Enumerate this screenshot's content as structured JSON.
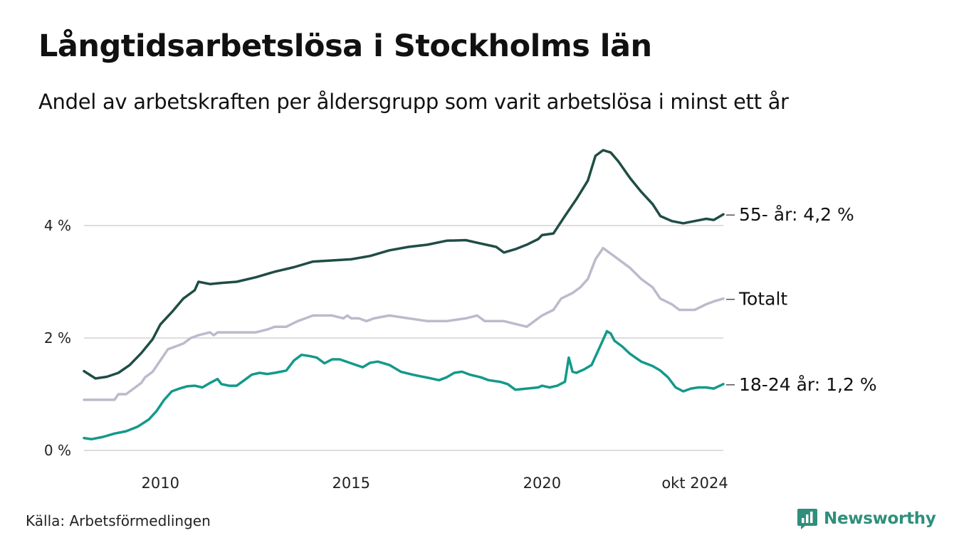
{
  "header": {
    "title": "Långtidsarbetslösa i Stockholms län",
    "subtitle": "Andel av arbetskraften per åldersgrupp som varit arbetslösa i minst ett år"
  },
  "footer": {
    "source": "Källa: Arbetsförmedlingen",
    "brand": "Newsworthy"
  },
  "colors": {
    "series_55": "#1f4d45",
    "series_total": "#bcbacb",
    "series_18_24": "#13998a",
    "grid": "#dddddd",
    "brand": "#2f8f7c"
  },
  "chart_data": {
    "type": "line",
    "title": "Långtidsarbetslösa i Stockholms län",
    "subtitle": "Andel av arbetskraften per åldersgrupp som varit arbetslösa i minst ett år",
    "xlabel": "",
    "ylabel": "",
    "xlim": [
      2008.0,
      2024.75
    ],
    "ylim": [
      0,
      5.5
    ],
    "yticks": [
      0,
      2,
      4
    ],
    "ytick_labels": [
      "0 %",
      "2 %",
      "4 %"
    ],
    "xticks": [
      2010,
      2015,
      2020,
      2024.75
    ],
    "xtick_labels": [
      "2010",
      "2015",
      "2020",
      "okt 2024"
    ],
    "grid": true,
    "series": [
      {
        "name": "55- år",
        "end_label": "55- år: 4,2 %",
        "x": [
          2008.0,
          2008.3,
          2008.6,
          2008.9,
          2009.2,
          2009.5,
          2009.8,
          2010.0,
          2010.3,
          2010.6,
          2010.9,
          2011.0,
          2011.3,
          2011.6,
          2012.0,
          2012.5,
          2013.0,
          2013.5,
          2014.0,
          2014.5,
          2015.0,
          2015.5,
          2016.0,
          2016.5,
          2017.0,
          2017.5,
          2018.0,
          2018.4,
          2018.8,
          2019.0,
          2019.3,
          2019.6,
          2019.9,
          2020.0,
          2020.3,
          2020.6,
          2020.9,
          2021.2,
          2021.4,
          2021.6,
          2021.8,
          2022.0,
          2022.3,
          2022.6,
          2022.9,
          2023.1,
          2023.4,
          2023.7,
          2024.0,
          2024.3,
          2024.5,
          2024.75
        ],
        "values": [
          1.41,
          1.28,
          1.31,
          1.38,
          1.52,
          1.73,
          1.98,
          2.24,
          2.46,
          2.7,
          2.85,
          3.0,
          2.96,
          2.98,
          3.0,
          3.08,
          3.18,
          3.26,
          3.36,
          3.38,
          3.4,
          3.46,
          3.56,
          3.62,
          3.66,
          3.73,
          3.74,
          3.68,
          3.62,
          3.52,
          3.58,
          3.66,
          3.76,
          3.83,
          3.86,
          4.17,
          4.47,
          4.8,
          5.24,
          5.34,
          5.3,
          5.14,
          4.85,
          4.6,
          4.38,
          4.17,
          4.08,
          4.04,
          4.08,
          4.12,
          4.1,
          4.2
        ]
      },
      {
        "name": "Totalt",
        "end_label": "Totalt",
        "x": [
          2008.0,
          2008.8,
          2008.9,
          2009.1,
          2009.3,
          2009.5,
          2009.6,
          2009.8,
          2010.0,
          2010.2,
          2010.4,
          2010.6,
          2010.8,
          2011.0,
          2011.3,
          2011.4,
          2011.5,
          2012.0,
          2012.5,
          2012.8,
          2013.0,
          2013.3,
          2013.6,
          2013.8,
          2014.0,
          2014.5,
          2014.8,
          2014.9,
          2015.0,
          2015.2,
          2015.4,
          2015.6,
          2016.0,
          2016.5,
          2017.0,
          2017.5,
          2018.0,
          2018.3,
          2018.5,
          2019.0,
          2019.6,
          2019.8,
          2020.0,
          2020.3,
          2020.5,
          2020.8,
          2021.0,
          2021.2,
          2021.4,
          2021.6,
          2021.8,
          2022.0,
          2022.3,
          2022.6,
          2022.9,
          2023.1,
          2023.4,
          2023.6,
          2024.0,
          2024.3,
          2024.5,
          2024.75
        ],
        "values": [
          0.9,
          0.9,
          1.0,
          1.0,
          1.1,
          1.2,
          1.3,
          1.4,
          1.6,
          1.8,
          1.85,
          1.9,
          2.0,
          2.05,
          2.1,
          2.05,
          2.1,
          2.1,
          2.1,
          2.15,
          2.2,
          2.2,
          2.3,
          2.35,
          2.4,
          2.4,
          2.35,
          2.4,
          2.35,
          2.35,
          2.3,
          2.35,
          2.4,
          2.35,
          2.3,
          2.3,
          2.35,
          2.4,
          2.3,
          2.3,
          2.2,
          2.3,
          2.4,
          2.5,
          2.7,
          2.8,
          2.9,
          3.05,
          3.4,
          3.6,
          3.5,
          3.4,
          3.25,
          3.05,
          2.9,
          2.7,
          2.6,
          2.5,
          2.5,
          2.6,
          2.65,
          2.7
        ]
      },
      {
        "name": "18-24 år",
        "end_label": "18-24 år: 1,2 %",
        "x": [
          2008.0,
          2008.2,
          2008.5,
          2008.8,
          2009.1,
          2009.4,
          2009.7,
          2009.9,
          2010.1,
          2010.3,
          2010.5,
          2010.7,
          2010.9,
          2011.1,
          2011.3,
          2011.5,
          2011.6,
          2011.8,
          2012.0,
          2012.2,
          2012.4,
          2012.6,
          2012.8,
          2013.0,
          2013.3,
          2013.5,
          2013.7,
          2013.9,
          2014.1,
          2014.3,
          2014.5,
          2014.7,
          2015.0,
          2015.3,
          2015.5,
          2015.7,
          2016.0,
          2016.3,
          2016.6,
          2016.8,
          2017.1,
          2017.3,
          2017.5,
          2017.7,
          2017.9,
          2018.1,
          2018.4,
          2018.6,
          2018.9,
          2019.1,
          2019.3,
          2019.6,
          2019.9,
          2020.0,
          2020.2,
          2020.4,
          2020.6,
          2020.7,
          2020.8,
          2020.9,
          2021.1,
          2021.3,
          2021.5,
          2021.7,
          2021.8,
          2021.9,
          2022.1,
          2022.3,
          2022.6,
          2022.9,
          2023.1,
          2023.3,
          2023.5,
          2023.7,
          2023.9,
          2024.1,
          2024.3,
          2024.5,
          2024.75
        ],
        "values": [
          0.22,
          0.2,
          0.24,
          0.3,
          0.34,
          0.42,
          0.55,
          0.7,
          0.9,
          1.05,
          1.1,
          1.14,
          1.15,
          1.12,
          1.2,
          1.27,
          1.18,
          1.15,
          1.15,
          1.25,
          1.35,
          1.38,
          1.36,
          1.38,
          1.42,
          1.6,
          1.7,
          1.68,
          1.65,
          1.55,
          1.62,
          1.62,
          1.55,
          1.48,
          1.56,
          1.58,
          1.52,
          1.4,
          1.35,
          1.32,
          1.28,
          1.25,
          1.3,
          1.38,
          1.4,
          1.35,
          1.3,
          1.25,
          1.22,
          1.18,
          1.08,
          1.1,
          1.12,
          1.15,
          1.12,
          1.15,
          1.22,
          1.65,
          1.4,
          1.38,
          1.44,
          1.52,
          1.82,
          2.12,
          2.08,
          1.95,
          1.85,
          1.72,
          1.58,
          1.5,
          1.42,
          1.3,
          1.12,
          1.05,
          1.1,
          1.12,
          1.12,
          1.1,
          1.18
        ]
      }
    ]
  }
}
